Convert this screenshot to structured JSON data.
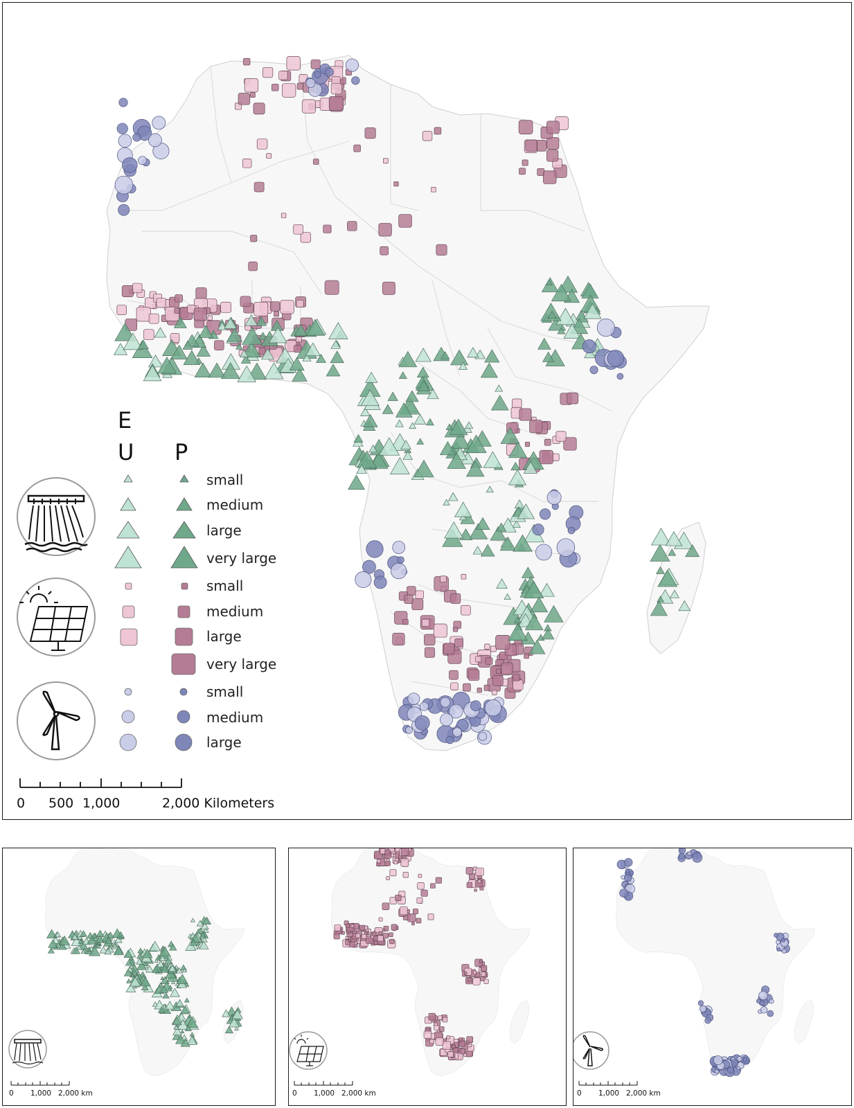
{
  "legend": {
    "col_e_letter": "E",
    "col_u_letter": "U",
    "col_p_letter": "P",
    "hydro": {
      "icon": "hydro-dam-icon",
      "sizes": [
        "small",
        "medium",
        "large",
        "very large"
      ]
    },
    "solar": {
      "icon": "solar-panel-icon",
      "sizes": [
        "small",
        "medium",
        "large",
        "very large"
      ]
    },
    "wind": {
      "icon": "wind-turbine-icon",
      "sizes": [
        "small",
        "medium",
        "large"
      ]
    }
  },
  "colors": {
    "hydro_u": "#bfe3d3",
    "hydro_p": "#6fa88a",
    "solar_u": "#efc6d6",
    "solar_p": "#b57c95",
    "wind_u": "#c9cde8",
    "wind_p": "#7f86b8",
    "land": "#f7f7f7",
    "border": "#cfcfcf"
  },
  "scale_bar": {
    "labels": [
      "0",
      "500",
      "1,000",
      "2,000 Kilometers"
    ]
  },
  "insets": [
    {
      "icon": "hydro-dam-icon",
      "scale_labels": [
        "0",
        "1,000",
        "2,000 km"
      ]
    },
    {
      "icon": "solar-panel-icon",
      "scale_labels": [
        "0",
        "1,000",
        "2,000 km"
      ]
    },
    {
      "icon": "wind-turbine-icon",
      "scale_labels": [
        "0",
        "1,000",
        "2,000 km"
      ]
    }
  ]
}
